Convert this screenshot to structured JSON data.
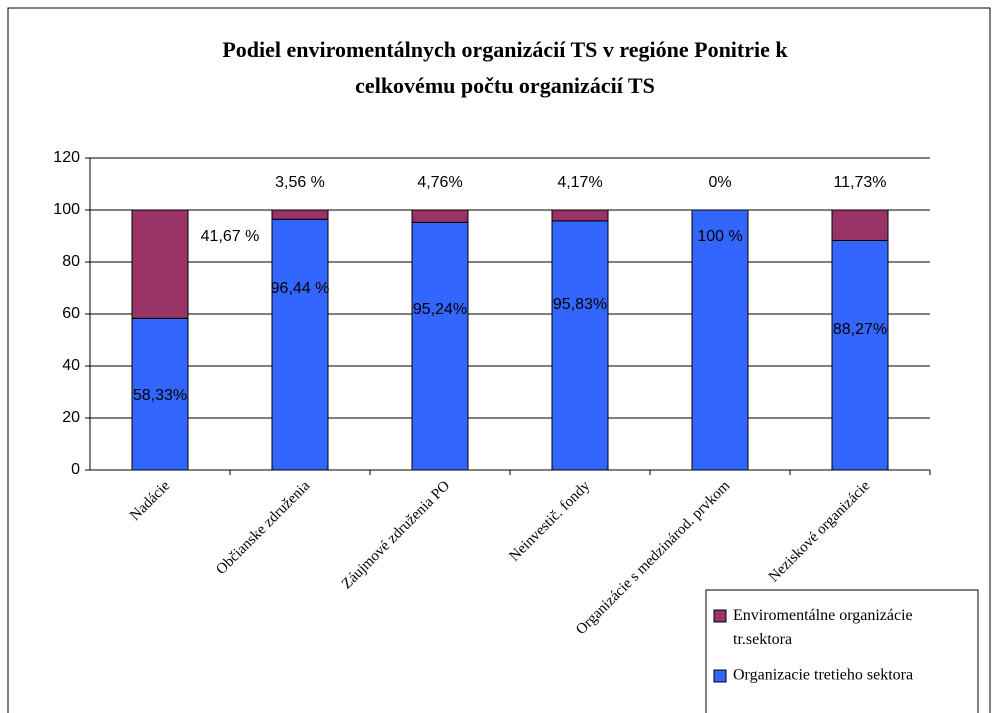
{
  "chart_data": {
    "type": "stacked_bar",
    "title": [
      "Podiel enviromentálnych organizácií TS  v regióne Ponitrie k",
      "celkovému počtu organizácií TS"
    ],
    "categories": [
      "Nadácie",
      "Občianske združenia",
      "Záujmové združenia PO",
      "Neinvestič. fondy",
      "Organizácie s medzinárod. prvkom",
      "Neziskové organizácie"
    ],
    "series": [
      {
        "name": "Organizacie tretieho sektora",
        "color": "#3366ff",
        "values": [
          58.33,
          96.44,
          95.24,
          95.83,
          100,
          88.27
        ],
        "value_labels": [
          "58,33%",
          "96,44 %",
          "95,24%",
          "95,83%",
          "100 %",
          "88,27%"
        ]
      },
      {
        "name": "Enviromentálne organizácie tr.sektora",
        "color": "#993366",
        "values": [
          41.67,
          3.56,
          4.76,
          4.17,
          0,
          11.73
        ],
        "value_labels": [
          "41,67 %",
          "3,56 %",
          "4,76%",
          "4,17%",
          "0%",
          "11,73%"
        ]
      }
    ],
    "ylim": [
      0,
      120
    ],
    "yticks": [
      0,
      20,
      40,
      60,
      80,
      100,
      120
    ],
    "grid": true,
    "legend": "bottom-right"
  }
}
